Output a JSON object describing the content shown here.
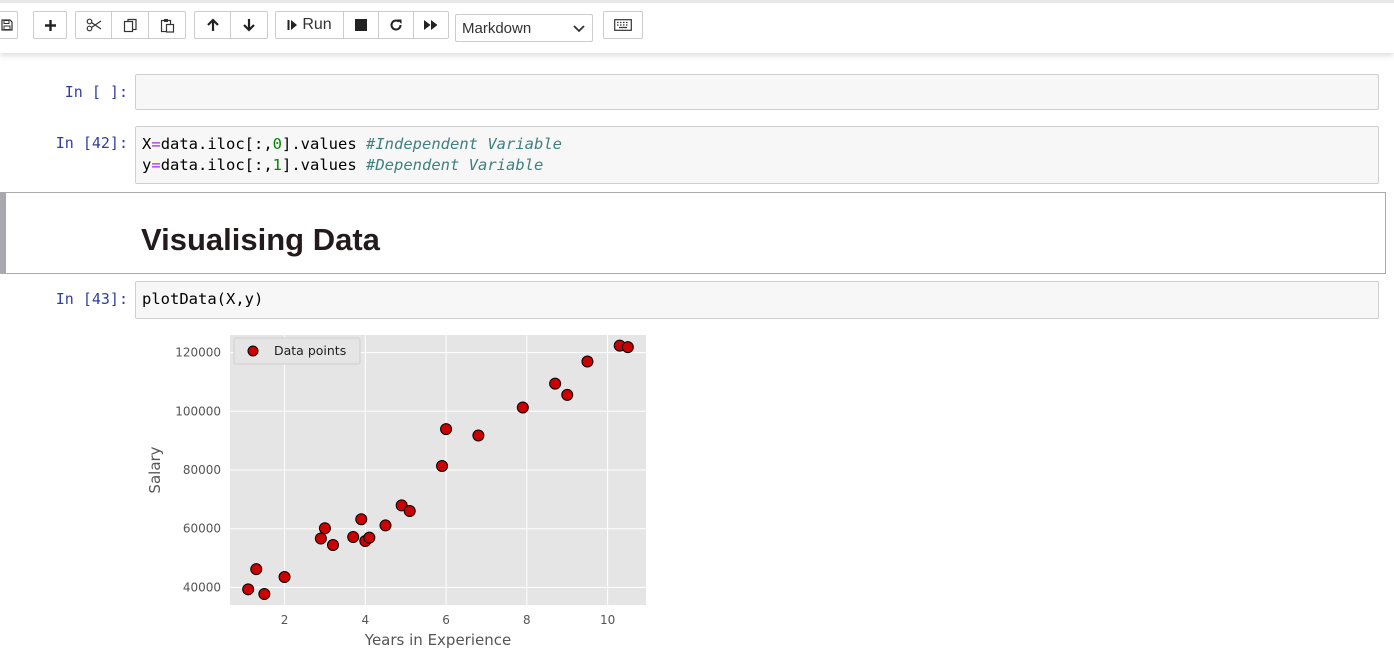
{
  "toolbar": {
    "run_label": "Run",
    "cell_type_selected": "Markdown",
    "icons": [
      "save-icon",
      "plus-icon",
      "cut-icon",
      "copy-icon",
      "paste-icon",
      "arrow-up-icon",
      "arrow-down-icon",
      "step-run-icon",
      "stop-icon",
      "restart-icon",
      "fast-forward-icon",
      "chevron-down-icon",
      "keyboard-icon"
    ]
  },
  "cells": {
    "empty": {
      "prompt": "In [ ]:"
    },
    "assign": {
      "prompt": "In [42]:",
      "line1": {
        "a": "X",
        "b": "=",
        "c": "data.iloc[:,",
        "d": "0",
        "e": "].values ",
        "f": "#Independent Variable"
      },
      "line2": {
        "a": "y",
        "b": "=",
        "c": "data.iloc[:,",
        "d": "1",
        "e": "].values ",
        "f": "#Dependent Variable"
      }
    },
    "markdown": {
      "heading": "Visualising Data"
    },
    "plot": {
      "prompt": "In [43]:",
      "code": "plotData(X,y)"
    }
  },
  "chart_data": {
    "type": "scatter",
    "xlabel": "Years in Experience",
    "ylabel": "Salary",
    "xlim": [
      0.65,
      10.95
    ],
    "ylim": [
      34000,
      126000
    ],
    "xticks": [
      2,
      4,
      6,
      8,
      10
    ],
    "yticks": [
      40000,
      60000,
      80000,
      100000,
      120000
    ],
    "grid": true,
    "legend_position": "top-left",
    "series": [
      {
        "name": "Data points",
        "color": "#cc0000",
        "edgecolor": "#000000",
        "x": [
          1.1,
          1.3,
          1.5,
          2.0,
          2.9,
          3.0,
          3.2,
          3.7,
          3.9,
          4.0,
          4.1,
          4.5,
          4.9,
          5.1,
          5.9,
          6.0,
          6.8,
          7.9,
          8.7,
          9.0,
          9.5,
          10.3,
          10.5
        ],
        "y": [
          39343,
          46205,
          37731,
          43525,
          56642,
          60150,
          54445,
          57189,
          63218,
          55794,
          56957,
          61111,
          67938,
          66029,
          81363,
          93940,
          91738,
          101302,
          109431,
          105582,
          116969,
          122391,
          121872
        ]
      }
    ]
  }
}
